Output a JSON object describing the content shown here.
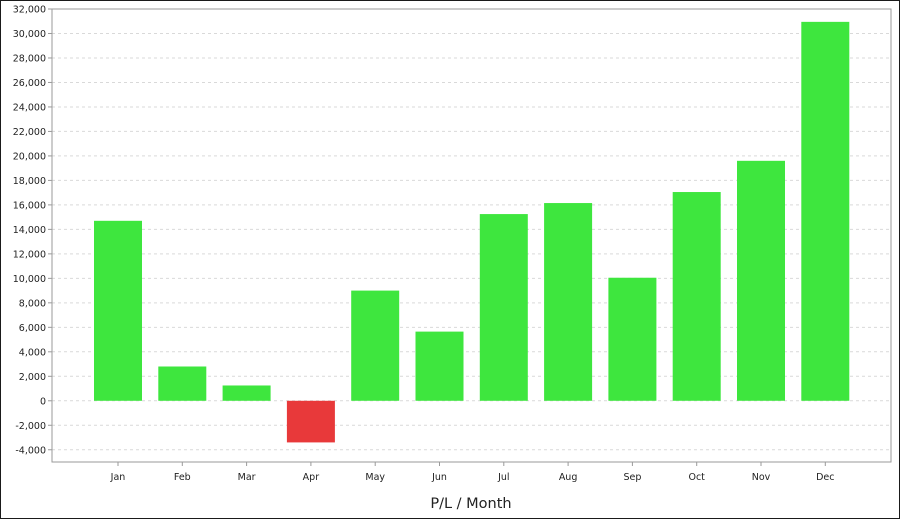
{
  "chart_data": {
    "type": "bar",
    "title": "",
    "xlabel": "P/L / Month",
    "ylabel": "",
    "categories": [
      "Jan",
      "Feb",
      "Mar",
      "Apr",
      "May",
      "Jun",
      "Jul",
      "Aug",
      "Sep",
      "Oct",
      "Nov",
      "Dec"
    ],
    "values": [
      14700,
      2800,
      1250,
      -3400,
      9000,
      5650,
      15250,
      16150,
      10050,
      17050,
      19600,
      30950
    ],
    "ylim": [
      -5000,
      32000
    ],
    "y_ticks": [
      "-4,000",
      "-2,000",
      "0",
      "2,000",
      "4,000",
      "6,000",
      "8,000",
      "10,000",
      "12,000",
      "14,000",
      "16,000",
      "18,000",
      "20,000",
      "22,000",
      "24,000",
      "26,000",
      "28,000",
      "30,000",
      "32,000"
    ],
    "grid": true,
    "colors": {
      "positive": "#3ee63e",
      "negative": "#e8393a",
      "grid": "#d9d9d9",
      "axis": "#9a9a9a"
    }
  }
}
